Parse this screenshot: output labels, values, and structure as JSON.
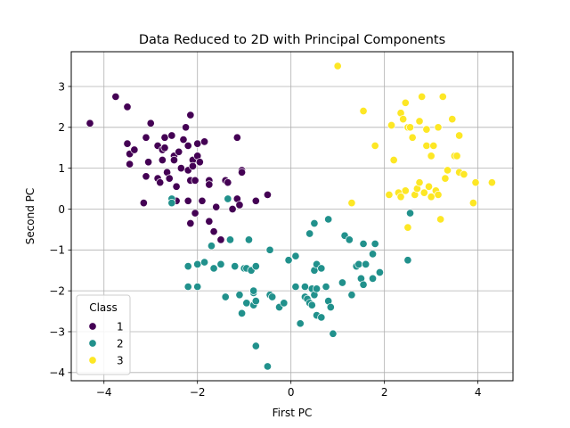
{
  "chart_data": {
    "type": "scatter",
    "title": "Data Reduced to 2D with Principal Components",
    "xlabel": "First PC",
    "ylabel": "Second PC",
    "xlim": [
      -4.7,
      4.75
    ],
    "ylim": [
      -4.2,
      3.85
    ],
    "xticks": [
      -4,
      -2,
      0,
      2,
      4
    ],
    "yticks": [
      -4,
      -3,
      -2,
      -1,
      0,
      1,
      2,
      3
    ],
    "grid": true,
    "legend": {
      "title": "Class",
      "placement": "lower-left"
    },
    "series": [
      {
        "name": "1",
        "color": "#440154",
        "points": [
          [
            -4.3,
            2.1
          ],
          [
            -3.75,
            2.75
          ],
          [
            -3.5,
            2.5
          ],
          [
            -3.5,
            1.6
          ],
          [
            -3.45,
            1.35
          ],
          [
            -3.45,
            1.1
          ],
          [
            -3.35,
            1.45
          ],
          [
            -3.15,
            0.15
          ],
          [
            -3.1,
            1.75
          ],
          [
            -3.1,
            0.8
          ],
          [
            -3.05,
            1.15
          ],
          [
            -3.0,
            2.1
          ],
          [
            -2.85,
            1.55
          ],
          [
            -2.85,
            0.75
          ],
          [
            -2.8,
            0.65
          ],
          [
            -2.75,
            1.2
          ],
          [
            -2.75,
            1.45
          ],
          [
            -2.7,
            1.75
          ],
          [
            -2.7,
            1.5
          ],
          [
            -2.65,
            0.9
          ],
          [
            -2.6,
            0.75
          ],
          [
            -2.55,
            1.8
          ],
          [
            -2.5,
            1.3
          ],
          [
            -2.5,
            1.2
          ],
          [
            -2.45,
            0.55
          ],
          [
            -2.45,
            0.2
          ],
          [
            -2.4,
            1.4
          ],
          [
            -2.35,
            1.0
          ],
          [
            -2.3,
            1.7
          ],
          [
            -2.25,
            2.0
          ],
          [
            -2.2,
            1.55
          ],
          [
            -2.2,
            0.95
          ],
          [
            -2.2,
            0.2
          ],
          [
            -2.15,
            0.7
          ],
          [
            -2.15,
            2.3
          ],
          [
            -2.15,
            -0.35
          ],
          [
            -2.1,
            1.2
          ],
          [
            -2.1,
            1.05
          ],
          [
            -2.05,
            -0.1
          ],
          [
            -2.05,
            0.7
          ],
          [
            -2.0,
            1.6
          ],
          [
            -2.0,
            1.3
          ],
          [
            -1.95,
            1.15
          ],
          [
            -1.9,
            0.2
          ],
          [
            -1.85,
            1.65
          ],
          [
            -1.75,
            0.7
          ],
          [
            -1.75,
            0.6
          ],
          [
            -1.75,
            -0.3
          ],
          [
            -1.65,
            -0.55
          ],
          [
            -1.6,
            0.05
          ],
          [
            -1.5,
            -0.75
          ],
          [
            -1.4,
            0.7
          ],
          [
            -1.35,
            0.65
          ],
          [
            -1.25,
            0.0
          ],
          [
            -1.15,
            1.75
          ],
          [
            -1.15,
            0.25
          ],
          [
            -1.1,
            0.1
          ],
          [
            -1.05,
            0.95
          ],
          [
            -1.05,
            0.9
          ],
          [
            -0.75,
            0.2
          ],
          [
            -0.5,
            0.35
          ]
        ]
      },
      {
        "name": "2",
        "color": "#21918c",
        "points": [
          [
            -2.55,
            0.25
          ],
          [
            -2.55,
            0.15
          ],
          [
            -2.2,
            -1.4
          ],
          [
            -2.2,
            -1.9
          ],
          [
            -2.0,
            -1.35
          ],
          [
            -2.0,
            -1.9
          ],
          [
            -1.85,
            -1.3
          ],
          [
            -1.7,
            -0.9
          ],
          [
            -1.65,
            -1.45
          ],
          [
            -1.5,
            -1.35
          ],
          [
            -1.4,
            -2.15
          ],
          [
            -1.35,
            0.25
          ],
          [
            -1.3,
            -0.75
          ],
          [
            -1.2,
            -1.4
          ],
          [
            -1.1,
            -2.1
          ],
          [
            -1.05,
            -2.55
          ],
          [
            -1.0,
            -1.45
          ],
          [
            -0.95,
            -1.45
          ],
          [
            -0.95,
            -2.3
          ],
          [
            -0.9,
            -0.75
          ],
          [
            -0.85,
            -1.5
          ],
          [
            -0.8,
            -2.35
          ],
          [
            -0.8,
            -2.05
          ],
          [
            -0.8,
            -2.0
          ],
          [
            -0.75,
            -1.4
          ],
          [
            -0.75,
            -3.35
          ],
          [
            -0.75,
            -2.25
          ],
          [
            -0.5,
            -3.85
          ],
          [
            -0.45,
            -1.0
          ],
          [
            -0.45,
            -2.1
          ],
          [
            -0.4,
            -2.15
          ],
          [
            -0.25,
            -2.4
          ],
          [
            -0.15,
            -2.3
          ],
          [
            -0.05,
            -1.25
          ],
          [
            0.1,
            -1.15
          ],
          [
            0.1,
            -1.9
          ],
          [
            0.2,
            -2.8
          ],
          [
            0.3,
            -2.15
          ],
          [
            0.3,
            -1.9
          ],
          [
            0.35,
            -2.2
          ],
          [
            0.4,
            -0.6
          ],
          [
            0.4,
            -2.3
          ],
          [
            0.45,
            -2.35
          ],
          [
            0.45,
            -1.95
          ],
          [
            0.5,
            -0.35
          ],
          [
            0.5,
            -2.1
          ],
          [
            0.5,
            -1.5
          ],
          [
            0.55,
            -1.95
          ],
          [
            0.55,
            -2.6
          ],
          [
            0.55,
            -1.35
          ],
          [
            0.65,
            -1.45
          ],
          [
            0.65,
            -2.65
          ],
          [
            0.75,
            -1.9
          ],
          [
            0.8,
            -0.25
          ],
          [
            0.8,
            -2.25
          ],
          [
            0.85,
            -2.4
          ],
          [
            0.9,
            -3.05
          ],
          [
            1.1,
            -1.8
          ],
          [
            1.15,
            -0.65
          ],
          [
            1.25,
            -0.75
          ],
          [
            1.3,
            -2.1
          ],
          [
            1.4,
            -1.4
          ],
          [
            1.45,
            -1.35
          ],
          [
            1.5,
            -1.7
          ],
          [
            1.55,
            -0.85
          ],
          [
            1.55,
            -1.85
          ],
          [
            1.6,
            -1.35
          ],
          [
            1.6,
            -1.35
          ],
          [
            1.75,
            -1.1
          ],
          [
            1.75,
            -1.7
          ],
          [
            1.8,
            -0.85
          ],
          [
            1.9,
            -1.55
          ],
          [
            2.5,
            -1.25
          ],
          [
            2.55,
            -0.1
          ]
        ]
      },
      {
        "name": "3",
        "color": "#fde725",
        "points": [
          [
            1.0,
            3.5
          ],
          [
            1.3,
            0.15
          ],
          [
            1.55,
            2.4
          ],
          [
            1.8,
            1.55
          ],
          [
            2.1,
            0.35
          ],
          [
            2.15,
            2.05
          ],
          [
            2.2,
            1.2
          ],
          [
            2.3,
            0.4
          ],
          [
            2.35,
            2.35
          ],
          [
            2.35,
            0.3
          ],
          [
            2.4,
            2.2
          ],
          [
            2.45,
            2.6
          ],
          [
            2.5,
            -0.45
          ],
          [
            2.45,
            0.45
          ],
          [
            2.5,
            2.0
          ],
          [
            2.55,
            2.0
          ],
          [
            2.6,
            1.75
          ],
          [
            2.65,
            0.35
          ],
          [
            2.7,
            0.5
          ],
          [
            2.75,
            2.15
          ],
          [
            2.75,
            0.65
          ],
          [
            2.8,
            2.75
          ],
          [
            2.85,
            0.4
          ],
          [
            2.9,
            1.95
          ],
          [
            2.9,
            1.55
          ],
          [
            2.95,
            0.55
          ],
          [
            3.0,
            1.3
          ],
          [
            3.0,
            0.3
          ],
          [
            3.05,
            1.55
          ],
          [
            3.1,
            0.45
          ],
          [
            3.15,
            2.0
          ],
          [
            3.15,
            0.35
          ],
          [
            3.2,
            -0.25
          ],
          [
            3.25,
            2.75
          ],
          [
            3.3,
            0.75
          ],
          [
            3.35,
            0.95
          ],
          [
            3.45,
            2.2
          ],
          [
            3.5,
            1.3
          ],
          [
            3.55,
            1.3
          ],
          [
            3.6,
            1.8
          ],
          [
            3.6,
            0.9
          ],
          [
            3.7,
            0.85
          ],
          [
            3.9,
            0.15
          ],
          [
            3.95,
            0.65
          ],
          [
            4.3,
            0.65
          ]
        ]
      }
    ]
  }
}
